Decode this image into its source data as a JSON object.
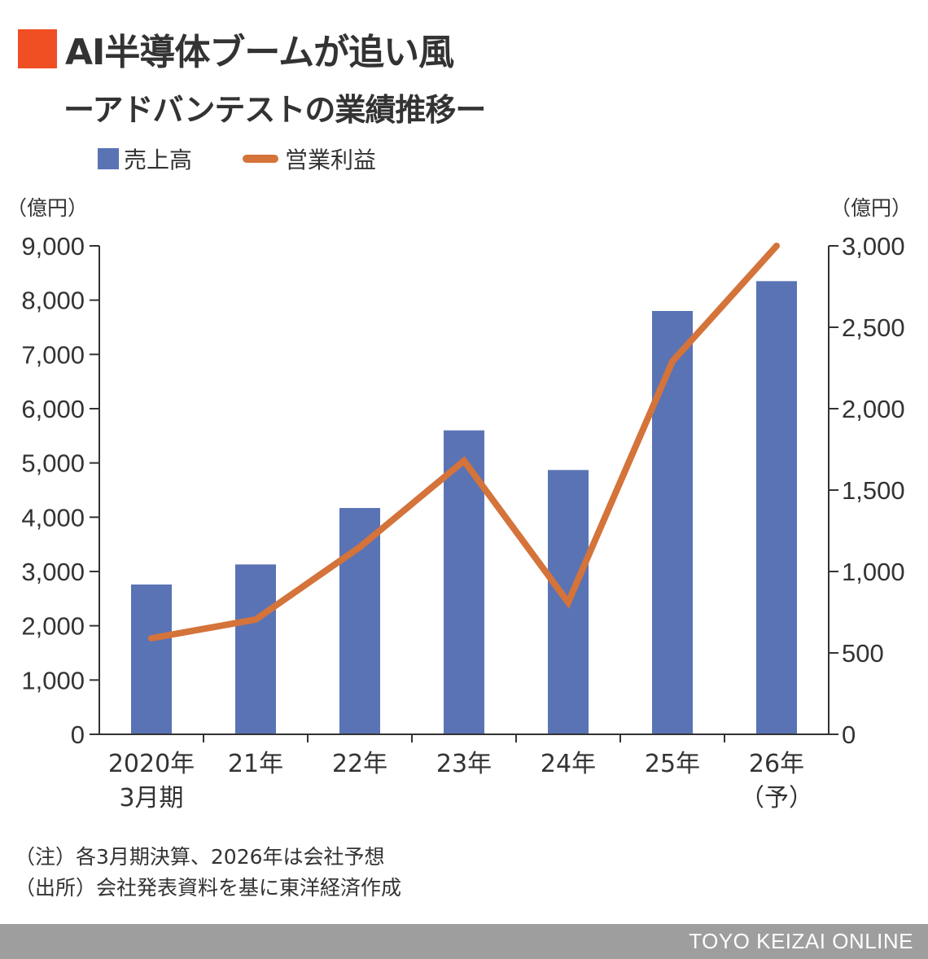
{
  "header": {
    "title": "AI半導体ブームが追い風",
    "subtitle": "ーアドバンテストの業績推移ー",
    "accent_color": "#f04e23"
  },
  "legend": {
    "bar_label": "売上高",
    "line_label": "営業利益"
  },
  "units": {
    "left": "（億円）",
    "right": "（億円）"
  },
  "chart_data": {
    "type": "bar",
    "categories": [
      [
        "2020年",
        "3月期"
      ],
      [
        "21年"
      ],
      [
        "22年"
      ],
      [
        "23年"
      ],
      [
        "24年"
      ],
      [
        "25年"
      ],
      [
        "26年",
        "（予）"
      ]
    ],
    "series": [
      {
        "name": "売上高",
        "type": "bar",
        "axis": "left",
        "color": "#5a73b5",
        "values": [
          2760,
          3130,
          4170,
          5600,
          4870,
          7800,
          8350
        ]
      },
      {
        "name": "営業利益",
        "type": "line",
        "axis": "right",
        "color": "#d4733a",
        "values": [
          590,
          705,
          1150,
          1680,
          810,
          2290,
          3000
        ]
      }
    ],
    "left_axis": {
      "ylim": [
        0,
        9000
      ],
      "ticks": [
        0,
        1000,
        2000,
        3000,
        4000,
        5000,
        6000,
        7000,
        8000,
        9000
      ],
      "tick_labels": [
        "0",
        "1,000",
        "2,000",
        "3,000",
        "4,000",
        "5,000",
        "6,000",
        "7,000",
        "8,000",
        "9,000"
      ]
    },
    "right_axis": {
      "ylim": [
        0,
        3000
      ],
      "ticks": [
        0,
        500,
        1000,
        1500,
        2000,
        2500,
        3000
      ],
      "tick_labels": [
        "0",
        "500",
        "1,000",
        "1,500",
        "2,000",
        "2,500",
        "3,000"
      ]
    },
    "grid": false,
    "legend_position": "top-left"
  },
  "notes": [
    "（注）各3月期決算、2026年は会社予想",
    "（出所）会社発表資料を基に東洋経済作成"
  ],
  "footer": {
    "brand": "TOYO KEIZAI ONLINE"
  }
}
